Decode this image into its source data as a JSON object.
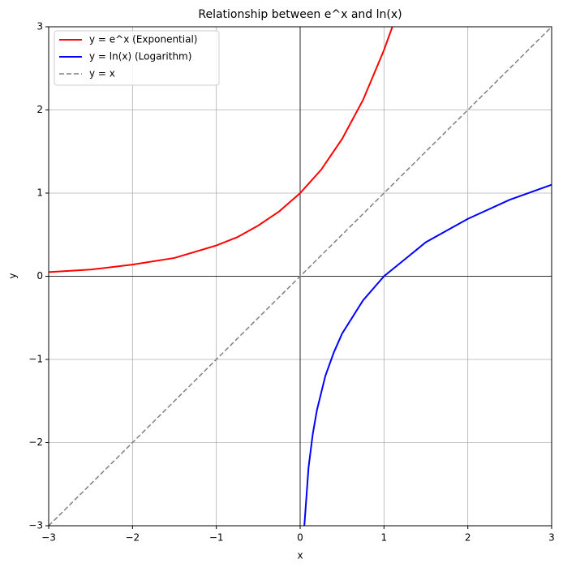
{
  "chart_data": {
    "type": "line",
    "title": "Relationship between e^x and ln(x)",
    "x_label": "x",
    "y_label": "y",
    "xlim": [
      -3,
      3
    ],
    "ylim": [
      -3,
      3
    ],
    "xticks": [
      {
        "value": -3,
        "label": "−3"
      },
      {
        "value": -2,
        "label": "−2"
      },
      {
        "value": -1,
        "label": "−1"
      },
      0,
      1,
      2,
      3
    ],
    "yticks": [
      {
        "value": -3,
        "label": "−3"
      },
      {
        "value": -2,
        "label": "−2"
      },
      {
        "value": -1,
        "label": "−1"
      },
      0,
      1,
      2,
      3
    ],
    "grid": true,
    "axhline": 0,
    "axvline": 0,
    "legend": "upper-left",
    "series": [
      {
        "name": "y = e^x (Exponential)",
        "color": "#ff0000",
        "linestyle": "solid",
        "x": [
          -3,
          -2.5,
          -2,
          -1.5,
          -1,
          -0.75,
          -0.5,
          -0.25,
          0,
          0.25,
          0.5,
          0.75,
          1,
          1.1
        ],
        "values": [
          0.05,
          0.08,
          0.14,
          0.22,
          0.37,
          0.47,
          0.61,
          0.78,
          1,
          1.28,
          1.65,
          2.12,
          2.72,
          3.0
        ]
      },
      {
        "name": "y = ln(x) (Logarithm)",
        "color": "#0000ff",
        "linestyle": "solid",
        "x": [
          0.05,
          0.1,
          0.15,
          0.2,
          0.3,
          0.4,
          0.5,
          0.75,
          1,
          1.5,
          2,
          2.5,
          3
        ],
        "values": [
          -3.0,
          -2.3,
          -1.9,
          -1.61,
          -1.2,
          -0.92,
          -0.69,
          -0.29,
          0,
          0.41,
          0.69,
          0.92,
          1.1
        ]
      },
      {
        "name": "y = x",
        "color": "#808080",
        "linestyle": "dashed",
        "x": [
          -3,
          3
        ],
        "values": [
          -3,
          3
        ]
      }
    ]
  }
}
